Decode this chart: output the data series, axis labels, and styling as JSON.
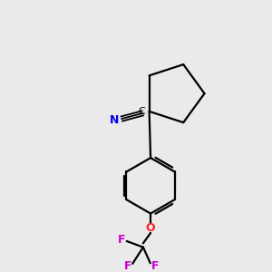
{
  "background_color": "#eaeaea",
  "bond_color": "#000000",
  "nitrogen_color": "#0000ee",
  "oxygen_color": "#ff2222",
  "fluorine_color": "#cc00cc",
  "figsize": [
    3.0,
    3.0
  ],
  "dpi": 100,
  "xlim": [
    0,
    10
  ],
  "ylim": [
    0,
    10
  ]
}
